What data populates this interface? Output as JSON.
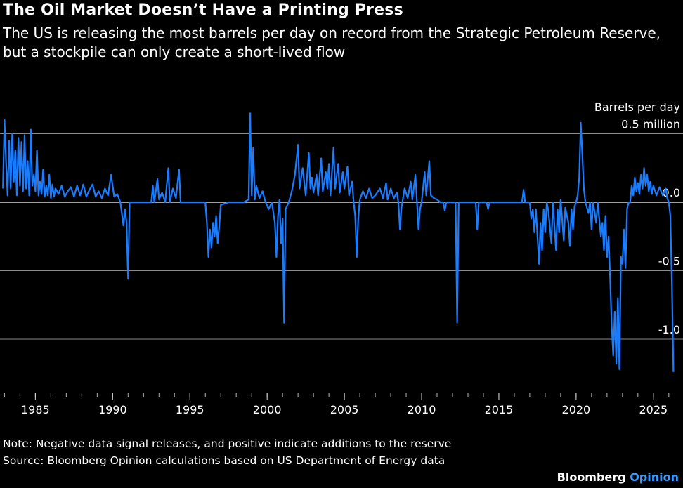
{
  "header": {
    "title": "The Oil Market Doesn’t Have a Printing Press",
    "subtitle": "The US is releasing the most barrels per day on record from the Strategic Petroleum Reserve, but a stockpile can only create a short-lived flow"
  },
  "footer": {
    "note": "Note: Negative data signal releases, and positive indicate additions to the reserve",
    "source": "Source: Bloomberg Opinion calculations based on US Department of Energy data",
    "brand_main": "Bloomberg",
    "brand_accent": "Opinion"
  },
  "colors": {
    "series": "#1a7cff",
    "background": "#000000",
    "grid": "#8a8a8a",
    "brand_accent": "#3b9bff"
  },
  "chart_data": {
    "type": "line",
    "unit_label": "Barrels per day",
    "ylim": [
      -1.35,
      0.6
    ],
    "xlim": [
      1982.8,
      2026.6
    ],
    "y_ticks": [
      {
        "value": 0.5,
        "label": "0.5 million"
      },
      {
        "value": 0.0,
        "label": "0.0"
      },
      {
        "value": -0.5,
        "label": "-0.5"
      },
      {
        "value": -1.0,
        "label": "-1.0"
      }
    ],
    "x_ticks": [
      {
        "value": 1985,
        "label": "1985"
      },
      {
        "value": 1990,
        "label": "1990"
      },
      {
        "value": 1995,
        "label": "1995"
      },
      {
        "value": 2000,
        "label": "2000"
      },
      {
        "value": 2005,
        "label": "2005"
      },
      {
        "value": 2010,
        "label": "2010"
      },
      {
        "value": 2015,
        "label": "2015"
      },
      {
        "value": 2020,
        "label": "2020"
      },
      {
        "value": 2025,
        "label": "2025"
      }
    ],
    "grid": true,
    "series": [
      {
        "values_unit": "million barrels per day",
        "points": [
          [
            1982.9,
            0.1
          ],
          [
            1983.0,
            0.6
          ],
          [
            1983.1,
            0.3
          ],
          [
            1983.2,
            0.05
          ],
          [
            1983.3,
            0.45
          ],
          [
            1983.4,
            0.1
          ],
          [
            1983.5,
            0.5
          ],
          [
            1983.6,
            0.15
          ],
          [
            1983.7,
            0.38
          ],
          [
            1983.8,
            0.05
          ],
          [
            1983.9,
            0.47
          ],
          [
            1984.0,
            0.12
          ],
          [
            1984.1,
            0.44
          ],
          [
            1984.2,
            0.08
          ],
          [
            1984.3,
            0.49
          ],
          [
            1984.4,
            0.1
          ],
          [
            1984.5,
            0.3
          ],
          [
            1984.6,
            0.05
          ],
          [
            1984.7,
            0.53
          ],
          [
            1984.8,
            0.12
          ],
          [
            1984.9,
            0.2
          ],
          [
            1985.0,
            0.08
          ],
          [
            1985.1,
            0.38
          ],
          [
            1985.2,
            0.05
          ],
          [
            1985.3,
            0.15
          ],
          [
            1985.4,
            0.06
          ],
          [
            1985.5,
            0.24
          ],
          [
            1985.6,
            0.04
          ],
          [
            1985.7,
            0.12
          ],
          [
            1985.8,
            0.05
          ],
          [
            1985.9,
            0.2
          ],
          [
            1986.0,
            0.03
          ],
          [
            1986.1,
            0.13
          ],
          [
            1986.2,
            0.04
          ],
          [
            1986.3,
            0.1
          ],
          [
            1986.5,
            0.06
          ],
          [
            1986.7,
            0.12
          ],
          [
            1986.9,
            0.04
          ],
          [
            1987.1,
            0.08
          ],
          [
            1987.3,
            0.11
          ],
          [
            1987.5,
            0.04
          ],
          [
            1987.7,
            0.12
          ],
          [
            1987.9,
            0.05
          ],
          [
            1988.1,
            0.13
          ],
          [
            1988.3,
            0.04
          ],
          [
            1988.5,
            0.09
          ],
          [
            1988.7,
            0.13
          ],
          [
            1988.9,
            0.04
          ],
          [
            1989.1,
            0.08
          ],
          [
            1989.3,
            0.03
          ],
          [
            1989.5,
            0.1
          ],
          [
            1989.7,
            0.05
          ],
          [
            1989.9,
            0.2
          ],
          [
            1990.1,
            0.04
          ],
          [
            1990.3,
            0.06
          ],
          [
            1990.5,
            0.0
          ],
          [
            1990.7,
            -0.17
          ],
          [
            1990.8,
            -0.05
          ],
          [
            1990.9,
            -0.15
          ],
          [
            1991.0,
            -0.56
          ],
          [
            1991.1,
            0.0
          ],
          [
            1991.5,
            0.0
          ],
          [
            1992.0,
            0.0
          ],
          [
            1992.5,
            0.0
          ],
          [
            1992.6,
            0.12
          ],
          [
            1992.7,
            0.0
          ],
          [
            1992.9,
            0.17
          ],
          [
            1993.0,
            0.02
          ],
          [
            1993.2,
            0.07
          ],
          [
            1993.4,
            0.0
          ],
          [
            1993.6,
            0.25
          ],
          [
            1993.7,
            0.0
          ],
          [
            1993.9,
            0.1
          ],
          [
            1994.1,
            0.03
          ],
          [
            1994.3,
            0.24
          ],
          [
            1994.4,
            0.0
          ],
          [
            1994.8,
            0.0
          ],
          [
            1995.5,
            0.0
          ],
          [
            1996.0,
            0.0
          ],
          [
            1996.1,
            -0.15
          ],
          [
            1996.2,
            -0.4
          ],
          [
            1996.3,
            -0.2
          ],
          [
            1996.4,
            -0.33
          ],
          [
            1996.5,
            -0.15
          ],
          [
            1996.6,
            -0.25
          ],
          [
            1996.7,
            -0.1
          ],
          [
            1996.8,
            -0.3
          ],
          [
            1996.9,
            -0.18
          ],
          [
            1997.0,
            -0.02
          ],
          [
            1997.5,
            0.0
          ],
          [
            1998.5,
            0.0
          ],
          [
            1998.8,
            0.02
          ],
          [
            1998.9,
            0.65
          ],
          [
            1999.0,
            0.05
          ],
          [
            1999.1,
            0.4
          ],
          [
            1999.2,
            0.02
          ],
          [
            1999.3,
            0.12
          ],
          [
            1999.5,
            0.03
          ],
          [
            1999.7,
            0.08
          ],
          [
            1999.9,
            0.0
          ],
          [
            2000.1,
            -0.05
          ],
          [
            2000.3,
            0.0
          ],
          [
            2000.5,
            -0.15
          ],
          [
            2000.6,
            -0.4
          ],
          [
            2000.7,
            -0.1
          ],
          [
            2000.8,
            0.02
          ],
          [
            2000.9,
            -0.3
          ],
          [
            2001.0,
            -0.12
          ],
          [
            2001.1,
            -0.88
          ],
          [
            2001.2,
            -0.05
          ],
          [
            2001.4,
            0.0
          ],
          [
            2001.6,
            0.08
          ],
          [
            2001.8,
            0.2
          ],
          [
            2002.0,
            0.42
          ],
          [
            2002.1,
            0.1
          ],
          [
            2002.3,
            0.25
          ],
          [
            2002.5,
            0.05
          ],
          [
            2002.7,
            0.36
          ],
          [
            2002.8,
            0.1
          ],
          [
            2002.9,
            0.18
          ],
          [
            2003.0,
            0.07
          ],
          [
            2003.2,
            0.2
          ],
          [
            2003.3,
            0.05
          ],
          [
            2003.5,
            0.32
          ],
          [
            2003.6,
            0.08
          ],
          [
            2003.8,
            0.22
          ],
          [
            2003.9,
            0.1
          ],
          [
            2004.0,
            0.28
          ],
          [
            2004.1,
            0.05
          ],
          [
            2004.3,
            0.4
          ],
          [
            2004.4,
            0.1
          ],
          [
            2004.6,
            0.28
          ],
          [
            2004.7,
            0.07
          ],
          [
            2004.9,
            0.22
          ],
          [
            2005.0,
            0.1
          ],
          [
            2005.2,
            0.26
          ],
          [
            2005.3,
            0.05
          ],
          [
            2005.5,
            0.15
          ],
          [
            2005.6,
            0.0
          ],
          [
            2005.7,
            -0.1
          ],
          [
            2005.8,
            -0.4
          ],
          [
            2005.9,
            -0.12
          ],
          [
            2006.0,
            0.02
          ],
          [
            2006.2,
            0.08
          ],
          [
            2006.4,
            0.03
          ],
          [
            2006.6,
            0.1
          ],
          [
            2006.8,
            0.03
          ],
          [
            2007.0,
            0.05
          ],
          [
            2007.3,
            0.1
          ],
          [
            2007.5,
            0.03
          ],
          [
            2007.7,
            0.14
          ],
          [
            2007.8,
            0.02
          ],
          [
            2008.0,
            0.1
          ],
          [
            2008.2,
            0.03
          ],
          [
            2008.4,
            0.07
          ],
          [
            2008.5,
            0.0
          ],
          [
            2008.6,
            -0.2
          ],
          [
            2008.7,
            -0.04
          ],
          [
            2008.9,
            0.1
          ],
          [
            2009.1,
            0.03
          ],
          [
            2009.3,
            0.15
          ],
          [
            2009.4,
            0.02
          ],
          [
            2009.6,
            0.2
          ],
          [
            2009.7,
            0.0
          ],
          [
            2009.8,
            -0.2
          ],
          [
            2009.9,
            -0.05
          ],
          [
            2010.0,
            0.0
          ],
          [
            2010.2,
            0.22
          ],
          [
            2010.3,
            0.05
          ],
          [
            2010.5,
            0.3
          ],
          [
            2010.6,
            0.05
          ],
          [
            2010.8,
            0.03
          ],
          [
            2011.0,
            0.02
          ],
          [
            2011.2,
            0.0
          ],
          [
            2011.4,
            0.0
          ],
          [
            2011.5,
            -0.06
          ],
          [
            2011.6,
            0.0
          ],
          [
            2012.0,
            0.0
          ],
          [
            2012.2,
            0.0
          ],
          [
            2012.3,
            -0.88
          ],
          [
            2012.4,
            0.0
          ],
          [
            2012.8,
            0.0
          ],
          [
            2013.0,
            0.0
          ],
          [
            2013.5,
            0.0
          ],
          [
            2013.6,
            -0.2
          ],
          [
            2013.7,
            0.0
          ],
          [
            2014.0,
            0.0
          ],
          [
            2014.2,
            0.0
          ],
          [
            2014.3,
            -0.05
          ],
          [
            2014.4,
            0.0
          ],
          [
            2015.0,
            0.0
          ],
          [
            2016.0,
            0.0
          ],
          [
            2016.5,
            0.0
          ],
          [
            2016.6,
            0.09
          ],
          [
            2016.7,
            0.0
          ],
          [
            2017.0,
            0.0
          ],
          [
            2017.1,
            -0.12
          ],
          [
            2017.2,
            -0.05
          ],
          [
            2017.3,
            -0.22
          ],
          [
            2017.4,
            -0.05
          ],
          [
            2017.5,
            -0.25
          ],
          [
            2017.6,
            -0.45
          ],
          [
            2017.7,
            -0.15
          ],
          [
            2017.8,
            -0.35
          ],
          [
            2017.9,
            -0.05
          ],
          [
            2018.0,
            -0.22
          ],
          [
            2018.1,
            0.0
          ],
          [
            2018.2,
            -0.06
          ],
          [
            2018.4,
            -0.3
          ],
          [
            2018.5,
            0.0
          ],
          [
            2018.7,
            -0.35
          ],
          [
            2018.8,
            -0.05
          ],
          [
            2018.9,
            -0.22
          ],
          [
            2019.0,
            0.02
          ],
          [
            2019.2,
            -0.28
          ],
          [
            2019.3,
            -0.04
          ],
          [
            2019.5,
            -0.15
          ],
          [
            2019.6,
            -0.32
          ],
          [
            2019.7,
            -0.05
          ],
          [
            2019.8,
            -0.2
          ],
          [
            2019.9,
            -0.03
          ],
          [
            2020.0,
            0.0
          ],
          [
            2020.1,
            0.05
          ],
          [
            2020.2,
            0.18
          ],
          [
            2020.3,
            0.58
          ],
          [
            2020.4,
            0.35
          ],
          [
            2020.5,
            0.1
          ],
          [
            2020.6,
            0.0
          ],
          [
            2020.8,
            -0.08
          ],
          [
            2020.9,
            0.0
          ],
          [
            2021.0,
            -0.2
          ],
          [
            2021.1,
            0.0
          ],
          [
            2021.3,
            -0.15
          ],
          [
            2021.4,
            0.0
          ],
          [
            2021.6,
            -0.25
          ],
          [
            2021.7,
            -0.15
          ],
          [
            2021.8,
            -0.35
          ],
          [
            2021.9,
            -0.1
          ],
          [
            2022.0,
            -0.4
          ],
          [
            2022.1,
            -0.25
          ],
          [
            2022.2,
            -0.55
          ],
          [
            2022.3,
            -0.9
          ],
          [
            2022.4,
            -1.12
          ],
          [
            2022.5,
            -0.8
          ],
          [
            2022.6,
            -1.18
          ],
          [
            2022.7,
            -0.7
          ],
          [
            2022.8,
            -1.22
          ],
          [
            2022.9,
            -0.4
          ],
          [
            2023.0,
            -0.45
          ],
          [
            2023.1,
            -0.2
          ],
          [
            2023.2,
            -0.48
          ],
          [
            2023.3,
            -0.05
          ],
          [
            2023.4,
            0.0
          ],
          [
            2023.5,
            0.0
          ],
          [
            2023.6,
            0.12
          ],
          [
            2023.7,
            0.05
          ],
          [
            2023.8,
            0.18
          ],
          [
            2023.9,
            0.08
          ],
          [
            2024.0,
            0.14
          ],
          [
            2024.1,
            0.06
          ],
          [
            2024.2,
            0.2
          ],
          [
            2024.3,
            0.1
          ],
          [
            2024.4,
            0.25
          ],
          [
            2024.5,
            0.12
          ],
          [
            2024.6,
            0.2
          ],
          [
            2024.7,
            0.08
          ],
          [
            2024.8,
            0.15
          ],
          [
            2024.9,
            0.06
          ],
          [
            2025.0,
            0.12
          ],
          [
            2025.2,
            0.05
          ],
          [
            2025.4,
            0.11
          ],
          [
            2025.6,
            0.05
          ],
          [
            2025.8,
            0.1
          ],
          [
            2025.9,
            0.03
          ],
          [
            2026.0,
            0.0
          ],
          [
            2026.1,
            -0.1
          ],
          [
            2026.2,
            -0.6
          ],
          [
            2026.3,
            -1.24
          ]
        ]
      }
    ]
  }
}
